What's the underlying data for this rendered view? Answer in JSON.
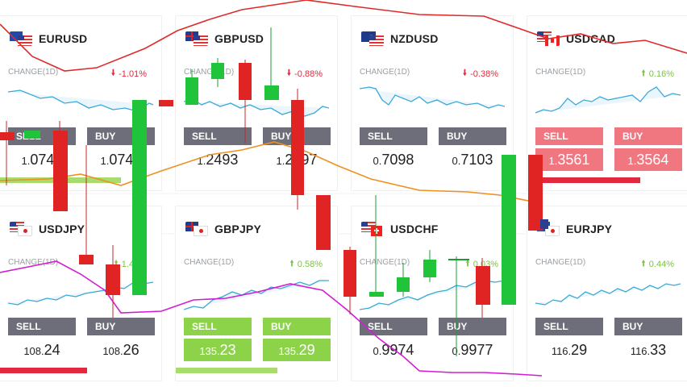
{
  "colors": {
    "up": "#7dc243",
    "down": "#e2283c",
    "button": "#6e6e7a",
    "green_btn": "#8dd34a",
    "red_btn": "#f07680",
    "spark": "#39a9d8"
  },
  "cards": [
    {
      "pair": "EURUSD",
      "flag": "eu-us-flag-icon",
      "change_label": "CHANGE(1D)",
      "change": "-1.01%",
      "dir": "down",
      "sell": "SELL",
      "buy": "BUY",
      "sell_prefix": "1.",
      "sell_main": "0743",
      "buy_prefix": "1.",
      "buy_main": "0746"
    },
    {
      "pair": "GBPUSD",
      "flag": "gb-us-flag-icon",
      "change_label": "CHANGE(1D)",
      "change": "-0.88%",
      "dir": "down",
      "sell": "SELL",
      "buy": "BUY",
      "sell_prefix": "1.",
      "sell_main": "2493",
      "buy_prefix": "1.",
      "buy_main": "2497"
    },
    {
      "pair": "NZDUSD",
      "flag": "nz-us-flag-icon",
      "change_label": "CHANGE(1D)",
      "change": "-0.38%",
      "dir": "down",
      "sell": "SELL",
      "buy": "BUY",
      "sell_prefix": "0.",
      "sell_main": "7098",
      "buy_prefix": "0.",
      "buy_main": "7103"
    },
    {
      "pair": "USDCAD",
      "flag": "us-ca-flag-icon",
      "change_label": "CHANGE(1D)",
      "change": "0.16%",
      "dir": "up",
      "sell": "SELL",
      "buy": "BUY",
      "sell_prefix": "1.",
      "sell_main": "3561",
      "buy_prefix": "1.",
      "buy_main": "3564"
    },
    {
      "pair": "USDJPY",
      "flag": "us-jp-flag-icon",
      "change_label": "CHANGE(1D)",
      "change": "1.48%",
      "dir": "up",
      "sell": "SELL",
      "buy": "BUY",
      "sell_prefix": "108.",
      "sell_main": "24",
      "buy_prefix": "108.",
      "buy_main": "26"
    },
    {
      "pair": "GBPJPY",
      "flag": "gb-jp-flag-icon",
      "change_label": "CHANGE(1D)",
      "change": "0.58%",
      "dir": "up",
      "sell": "SELL",
      "buy": "BUY",
      "sell_prefix": "135.",
      "sell_main": "23",
      "buy_prefix": "135.",
      "buy_main": "29"
    },
    {
      "pair": "USDCHF",
      "flag": "us-ch-flag-icon",
      "change_label": "CHANGE(1D)",
      "change": "0.03%",
      "dir": "up",
      "sell": "SELL",
      "buy": "BUY",
      "sell_prefix": "0.",
      "sell_main": "9974",
      "buy_prefix": "0.",
      "buy_main": "9977"
    },
    {
      "pair": "EURJPY",
      "flag": "eu-jp-flag-icon",
      "change_label": "CHANGE(1D)",
      "change": "0.44%",
      "dir": "up",
      "sell": "SELL",
      "buy": "BUY",
      "sell_prefix": "116.",
      "sell_main": "29",
      "buy_prefix": "116.",
      "buy_main": "33"
    }
  ]
}
